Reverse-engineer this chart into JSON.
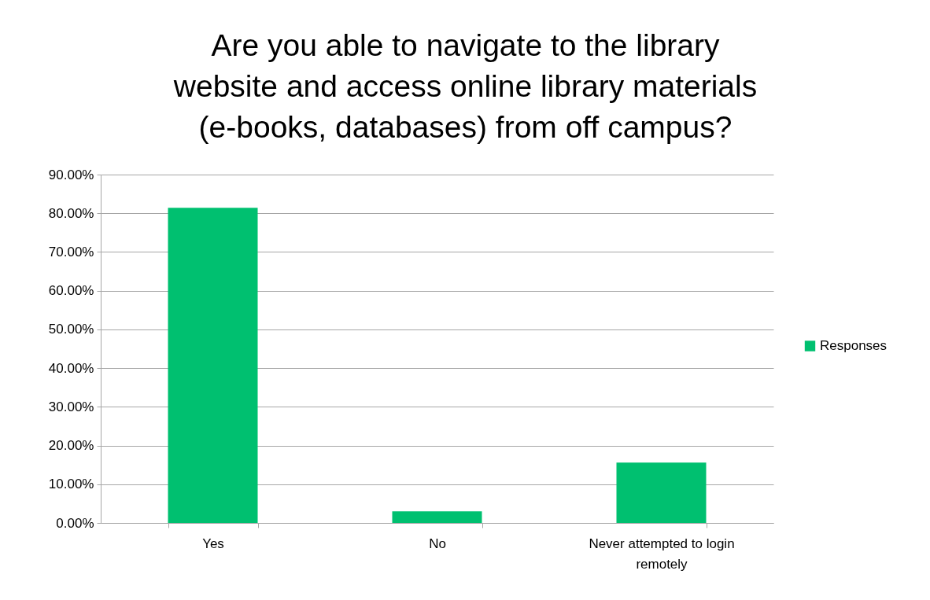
{
  "chart_data": {
    "type": "bar",
    "title": "Are you able to navigate to the library website and access online library materials (e-books, databases) from off campus?",
    "categories": [
      "Yes",
      "No",
      "Never attempted to login remotely"
    ],
    "series": [
      {
        "name": "Responses",
        "color": "#00c070",
        "values": [
          81.4,
          3.0,
          15.6
        ]
      }
    ],
    "ylim": [
      0,
      90
    ],
    "yticks": [
      {
        "value": 0,
        "label": "0.00%"
      },
      {
        "value": 10,
        "label": "10.00%"
      },
      {
        "value": 20,
        "label": "20.00%"
      },
      {
        "value": 30,
        "label": "30.00%"
      },
      {
        "value": 40,
        "label": "40.00%"
      },
      {
        "value": 50,
        "label": "50.00%"
      },
      {
        "value": 60,
        "label": "60.00%"
      },
      {
        "value": 70,
        "label": "70.00%"
      },
      {
        "value": 80,
        "label": "80.00%"
      },
      {
        "value": 90,
        "label": "90.00%"
      }
    ],
    "grid": "y",
    "legend": "right"
  }
}
